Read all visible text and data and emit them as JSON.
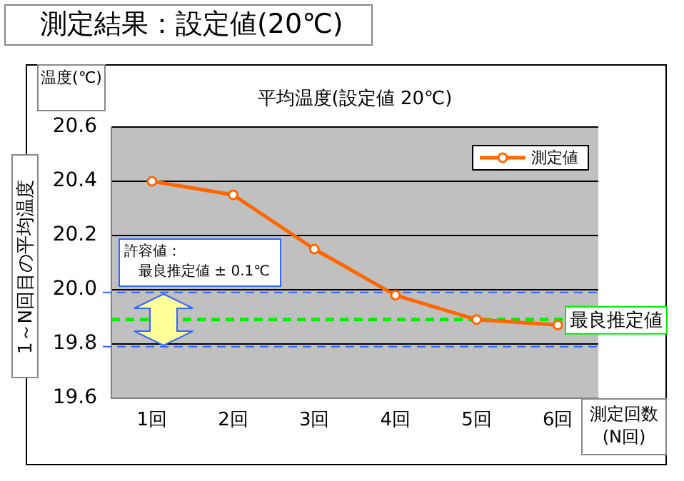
{
  "chart_data": {
    "type": "line",
    "title": "測定結果：設定値(20℃)",
    "subtitle": "平均温度(設定値 20℃)",
    "xlabel": "測定回数(N回)",
    "ylabel": "1～N回目の平均温度",
    "annotations": [
      "温度(℃)",
      "許容値：",
      "最良推定値 ± 0.1℃"
    ],
    "categories": [
      "1回",
      "2回",
      "3回",
      "4回",
      "5回",
      "6回"
    ],
    "series": [
      {
        "name": "測定値",
        "color": "#ff6600",
        "values": [
          20.4,
          20.35,
          20.15,
          19.98,
          19.89,
          19.87
        ]
      }
    ],
    "ylim": [
      19.6,
      20.6
    ],
    "yticks": [
      19.6,
      19.8,
      {
        "value": 20,
        "label": "20.0"
      },
      20.2,
      20.4,
      20.6
    ],
    "ref_lines": [
      {
        "axis": "y",
        "value": 19.89,
        "label": "最良推定値",
        "color": "#00ee00",
        "line_style": "dashed"
      },
      {
        "axis": "y",
        "value": 19.99,
        "color": "#3366ff",
        "line_style": "dashed"
      },
      {
        "axis": "y",
        "value": 19.79,
        "color": "#3366ff",
        "line_style": "dashed"
      }
    ],
    "grid": "y",
    "legend": "top right",
    "marker": "circle",
    "line_style": "solid"
  }
}
